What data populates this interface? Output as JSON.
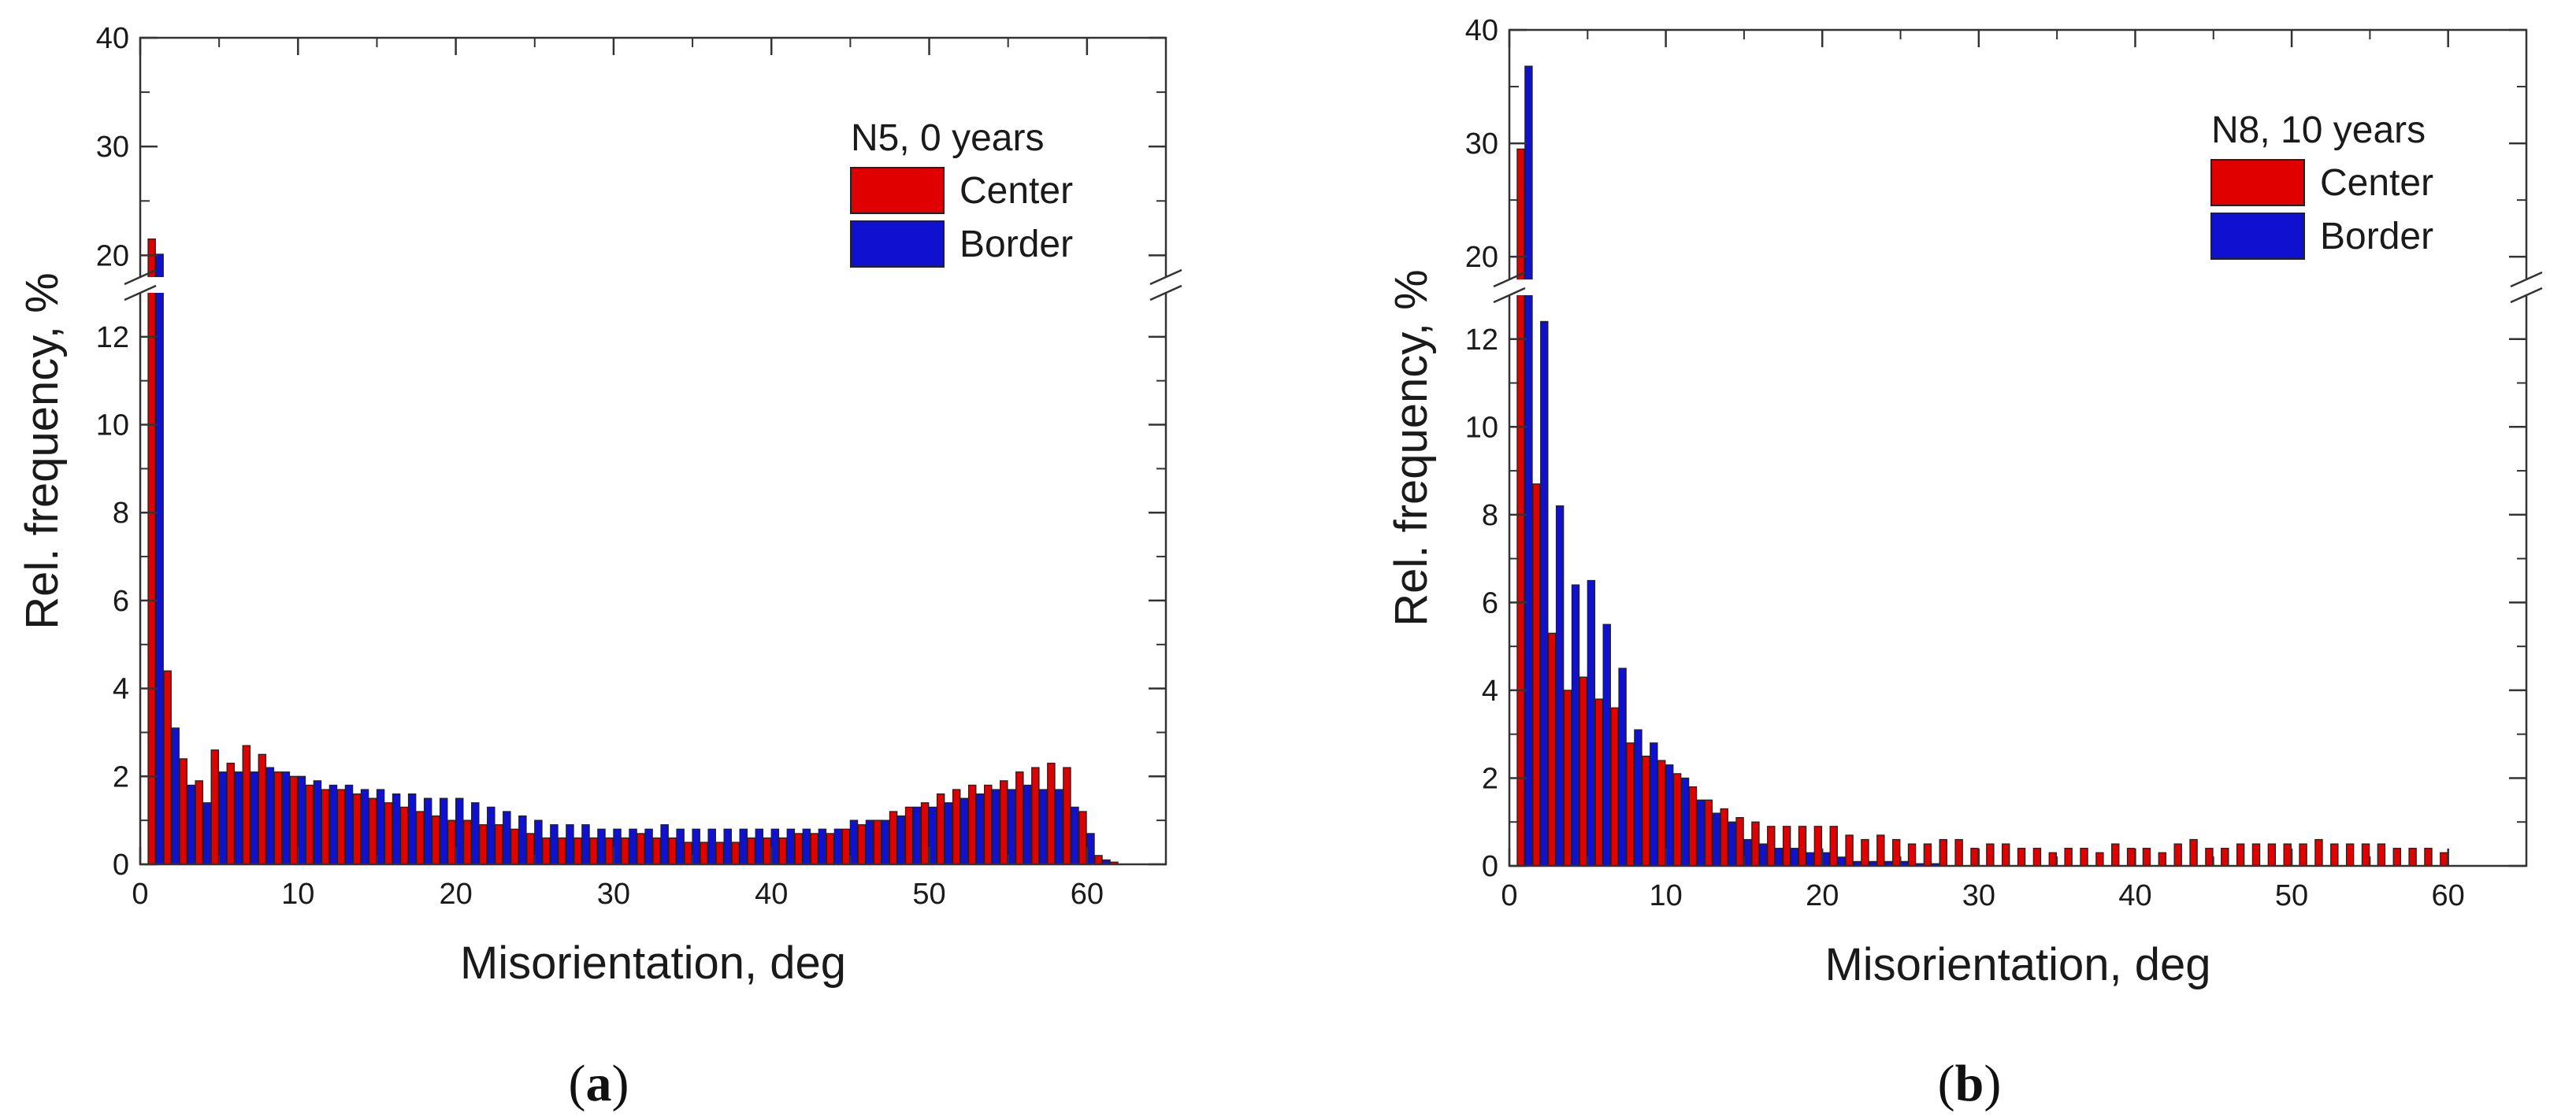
{
  "chart_data": [
    {
      "type": "bar",
      "panel_label": "a",
      "legend_title": "N5, 0 years",
      "legend_placement": "top-right",
      "xlabel": "Misorientation, deg",
      "ylabel": "Rel. frequency, %",
      "x_ticks": [
        "0",
        "10",
        "20",
        "30",
        "40",
        "50",
        "60"
      ],
      "y_ticks_lower": [
        "0",
        "2",
        "4",
        "6",
        "8",
        "10",
        "12"
      ],
      "y_ticks_upper": [
        "20",
        "30",
        "40"
      ],
      "xlim": [
        0,
        65
      ],
      "ylim_lower": [
        0,
        13
      ],
      "ylim_upper": [
        18,
        40
      ],
      "x": [
        1,
        2,
        3,
        4,
        5,
        6,
        7,
        8,
        9,
        10,
        11,
        12,
        13,
        14,
        15,
        16,
        17,
        18,
        19,
        20,
        21,
        22,
        23,
        24,
        25,
        26,
        27,
        28,
        29,
        30,
        31,
        32,
        33,
        34,
        35,
        36,
        37,
        38,
        39,
        40,
        41,
        42,
        43,
        44,
        45,
        46,
        47,
        48,
        49,
        50,
        51,
        52,
        53,
        54,
        55,
        56,
        57,
        58,
        59,
        60,
        61,
        62
      ],
      "series": [
        {
          "name": "Center",
          "color": "#e00000",
          "values": [
            21.5,
            4.4,
            2.4,
            1.9,
            2.6,
            2.3,
            2.7,
            2.5,
            2.1,
            2.0,
            1.8,
            1.7,
            1.7,
            1.6,
            1.5,
            1.4,
            1.3,
            1.2,
            1.1,
            1.0,
            1.0,
            0.9,
            0.9,
            0.8,
            0.7,
            0.6,
            0.6,
            0.6,
            0.6,
            0.6,
            0.6,
            0.7,
            0.6,
            0.6,
            0.5,
            0.5,
            0.5,
            0.5,
            0.6,
            0.6,
            0.6,
            0.7,
            0.7,
            0.7,
            0.8,
            0.9,
            1.0,
            1.2,
            1.3,
            1.4,
            1.6,
            1.7,
            1.8,
            1.8,
            1.9,
            2.1,
            2.2,
            2.3,
            2.2,
            1.2,
            0.2,
            0.05
          ]
        },
        {
          "name": "Border",
          "color": "#1010d0",
          "values": [
            20.1,
            3.1,
            1.8,
            1.4,
            2.1,
            2.1,
            2.1,
            2.2,
            2.1,
            2.0,
            1.9,
            1.8,
            1.8,
            1.7,
            1.7,
            1.6,
            1.6,
            1.5,
            1.5,
            1.5,
            1.4,
            1.3,
            1.2,
            1.1,
            1.0,
            0.9,
            0.9,
            0.9,
            0.8,
            0.8,
            0.8,
            0.8,
            0.9,
            0.8,
            0.8,
            0.8,
            0.8,
            0.8,
            0.8,
            0.8,
            0.8,
            0.8,
            0.8,
            0.8,
            1.0,
            1.0,
            1.0,
            1.1,
            1.3,
            1.3,
            1.4,
            1.5,
            1.6,
            1.7,
            1.7,
            1.8,
            1.7,
            1.7,
            1.3,
            0.7,
            0.1,
            0.0
          ]
        }
      ]
    },
    {
      "type": "bar",
      "panel_label": "b",
      "legend_title": "N8, 10 years",
      "legend_placement": "top-right",
      "xlabel": "Misorientation, deg",
      "ylabel": "Rel. frequency, %",
      "x_ticks": [
        "0",
        "10",
        "20",
        "30",
        "40",
        "50",
        "60"
      ],
      "y_ticks_lower": [
        "0",
        "2",
        "4",
        "6",
        "8",
        "10",
        "12"
      ],
      "y_ticks_upper": [
        "20",
        "30",
        "40"
      ],
      "xlim": [
        0,
        65
      ],
      "ylim_lower": [
        0,
        13
      ],
      "ylim_upper": [
        18,
        40
      ],
      "x": [
        1,
        2,
        3,
        4,
        5,
        6,
        7,
        8,
        9,
        10,
        11,
        12,
        13,
        14,
        15,
        16,
        17,
        18,
        19,
        20,
        21,
        22,
        23,
        24,
        25,
        26,
        27,
        28,
        29,
        30,
        31,
        32,
        33,
        34,
        35,
        36,
        37,
        38,
        39,
        40,
        41,
        42,
        43,
        44,
        45,
        46,
        47,
        48,
        49,
        50,
        51,
        52,
        53,
        54,
        55,
        56,
        57,
        58,
        59,
        60,
        61
      ],
      "series": [
        {
          "name": "Center",
          "color": "#e00000",
          "values": [
            29.5,
            8.7,
            5.3,
            4.0,
            4.3,
            3.8,
            3.6,
            2.8,
            2.5,
            2.4,
            2.1,
            1.8,
            1.5,
            1.3,
            1.1,
            1.0,
            0.9,
            0.9,
            0.9,
            0.9,
            0.9,
            0.7,
            0.6,
            0.7,
            0.6,
            0.5,
            0.5,
            0.6,
            0.6,
            0.4,
            0.5,
            0.5,
            0.4,
            0.4,
            0.3,
            0.4,
            0.4,
            0.3,
            0.5,
            0.4,
            0.4,
            0.3,
            0.5,
            0.6,
            0.4,
            0.4,
            0.5,
            0.5,
            0.5,
            0.5,
            0.5,
            0.6,
            0.5,
            0.5,
            0.5,
            0.5,
            0.4,
            0.4,
            0.4,
            0.3,
            0.0
          ]
        },
        {
          "name": "Border",
          "color": "#1010d0",
          "values": [
            36.8,
            12.4,
            8.2,
            6.4,
            6.5,
            5.5,
            4.5,
            3.1,
            2.8,
            2.3,
            2.0,
            1.5,
            1.2,
            1.0,
            0.6,
            0.5,
            0.4,
            0.4,
            0.3,
            0.3,
            0.2,
            0.1,
            0.1,
            0.1,
            0.1,
            0.05,
            0.05,
            0.0,
            0.0,
            0.0,
            0.0,
            0.0,
            0.0,
            0.0,
            0.0,
            0.0,
            0.0,
            0.0,
            0.0,
            0.0,
            0.0,
            0.0,
            0.0,
            0.0,
            0.0,
            0.0,
            0.0,
            0.0,
            0.0,
            0.0,
            0.0,
            0.0,
            0.0,
            0.0,
            0.0,
            0.0,
            0.0,
            0.0,
            0.0,
            0.0,
            0.0
          ]
        }
      ]
    }
  ]
}
